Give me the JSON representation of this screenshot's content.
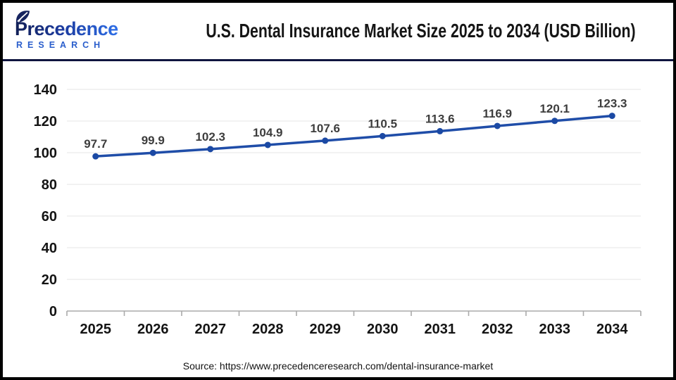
{
  "header": {
    "logo": {
      "brand": "Precedence",
      "sub": "RESEARCH"
    },
    "title": "U.S. Dental Insurance Market Size 2025 to 2034 (USD Billion)"
  },
  "chart_data": {
    "type": "line",
    "title": "U.S. Dental Insurance Market Size 2025 to 2034 (USD Billion)",
    "categories": [
      "2025",
      "2026",
      "2027",
      "2028",
      "2029",
      "2030",
      "2031",
      "2032",
      "2033",
      "2034"
    ],
    "series": [
      {
        "name": "U.S. Dental Insurance Market Size (USD Billion)",
        "values": [
          97.7,
          99.9,
          102.3,
          104.9,
          107.6,
          110.5,
          113.6,
          116.9,
          120.1,
          123.3
        ]
      }
    ],
    "ylim": [
      0,
      140
    ],
    "ytick_step": 20,
    "grid": true,
    "legend_position": "none",
    "line_color": "#1f4da8",
    "marker_color": "#1b49a4",
    "data_label_color": "#3d3d3d",
    "axis_label_color": "#141414",
    "grid_color": "#e5e5e5",
    "axis_line_color": "#aaaaaa"
  },
  "footer": {
    "source": "Source: https://www.precedenceresearch.com/dental-insurance-market"
  }
}
